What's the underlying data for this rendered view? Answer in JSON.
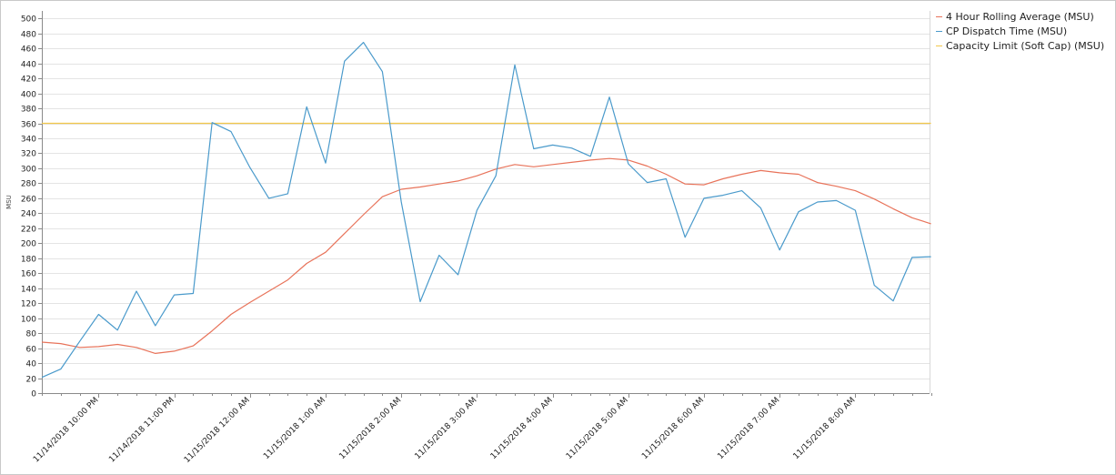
{
  "chart_data": {
    "type": "line",
    "title": "",
    "xlabel": "",
    "ylabel": "MSU",
    "ylim": [
      0,
      510
    ],
    "yticks": [
      0,
      20,
      40,
      60,
      80,
      100,
      120,
      140,
      160,
      180,
      200,
      220,
      240,
      260,
      280,
      300,
      320,
      340,
      360,
      380,
      400,
      420,
      440,
      460,
      480,
      500
    ],
    "grid": true,
    "legend_position": "top-right",
    "x": [
      "11/14/2018 9:15 PM",
      "11/14/2018 9:30 PM",
      "11/14/2018 9:45 PM",
      "11/14/2018 10:00 PM",
      "11/14/2018 10:15 PM",
      "11/14/2018 10:30 PM",
      "11/14/2018 10:45 PM",
      "11/14/2018 11:00 PM",
      "11/14/2018 11:15 PM",
      "11/14/2018 11:30 PM",
      "11/14/2018 11:45 PM",
      "11/15/2018 12:00 AM",
      "11/15/2018 12:15 AM",
      "11/15/2018 12:30 AM",
      "11/15/2018 12:45 AM",
      "11/15/2018 1:00 AM",
      "11/15/2018 1:15 AM",
      "11/15/2018 1:30 AM",
      "11/15/2018 1:45 AM",
      "11/15/2018 2:00 AM",
      "11/15/2018 2:15 AM",
      "11/15/2018 2:30 AM",
      "11/15/2018 2:45 AM",
      "11/15/2018 3:00 AM",
      "11/15/2018 3:15 AM",
      "11/15/2018 3:30 AM",
      "11/15/2018 3:45 AM",
      "11/15/2018 4:00 AM",
      "11/15/2018 4:15 AM",
      "11/15/2018 4:30 AM",
      "11/15/2018 4:45 AM",
      "11/15/2018 5:00 AM",
      "11/15/2018 5:15 AM",
      "11/15/2018 5:30 AM",
      "11/15/2018 5:45 AM",
      "11/15/2018 6:00 AM",
      "11/15/2018 6:15 AM",
      "11/15/2018 6:30 AM",
      "11/15/2018 6:45 AM",
      "11/15/2018 7:00 AM",
      "11/15/2018 7:15 AM",
      "11/15/2018 7:30 AM",
      "11/15/2018 7:45 AM",
      "11/15/2018 8:00 AM",
      "11/15/2018 8:15 AM",
      "11/15/2018 8:30 AM",
      "11/15/2018 8:45 AM",
      "11/15/2018 9:00 AM"
    ],
    "xtick_labels": [
      "11/14/2018 10:00 PM",
      "11/14/2018 11:00 PM",
      "11/15/2018 12:00 AM",
      "11/15/2018 1:00 AM",
      "11/15/2018 2:00 AM",
      "11/15/2018 3:00 AM",
      "11/15/2018 4:00 AM",
      "11/15/2018 5:00 AM",
      "11/15/2018 6:00 AM",
      "11/15/2018 7:00 AM",
      "11/15/2018 8:00 AM"
    ],
    "series": [
      {
        "name": "4 Hour Rolling Average (MSU)",
        "color": "#e8735a",
        "values": [
          68,
          66,
          61,
          62,
          65,
          61,
          53,
          56,
          63,
          83,
          105,
          121,
          136,
          151,
          173,
          188,
          213,
          238,
          262,
          272,
          275,
          279,
          283,
          290,
          299,
          305,
          302,
          305,
          308,
          311,
          313,
          311,
          303,
          292,
          279,
          278,
          286,
          292,
          297,
          294,
          292,
          281,
          276,
          270,
          259,
          246,
          234,
          226
        ]
      },
      {
        "name": "CP Dispatch Time (MSU)",
        "color": "#4a9acb",
        "values": [
          21,
          32,
          69,
          105,
          84,
          136,
          90,
          131,
          133,
          361,
          349,
          301,
          260,
          266,
          382,
          307,
          443,
          468,
          429,
          255,
          122,
          184,
          158,
          244,
          290,
          438,
          326,
          331,
          327,
          316,
          395,
          306,
          281,
          286,
          208,
          260,
          264,
          270,
          247,
          191,
          242,
          255,
          257,
          244,
          144,
          123,
          181,
          182
        ]
      },
      {
        "name": "Capacity Limit (Soft Cap) (MSU)",
        "color": "#f2c84b",
        "values": [
          360,
          360,
          360,
          360,
          360,
          360,
          360,
          360,
          360,
          360,
          360,
          360,
          360,
          360,
          360,
          360,
          360,
          360,
          360,
          360,
          360,
          360,
          360,
          360,
          360,
          360,
          360,
          360,
          360,
          360,
          360,
          360,
          360,
          360,
          360,
          360,
          360,
          360,
          360,
          360,
          360,
          360,
          360,
          360,
          360,
          360,
          360,
          360
        ]
      }
    ]
  }
}
